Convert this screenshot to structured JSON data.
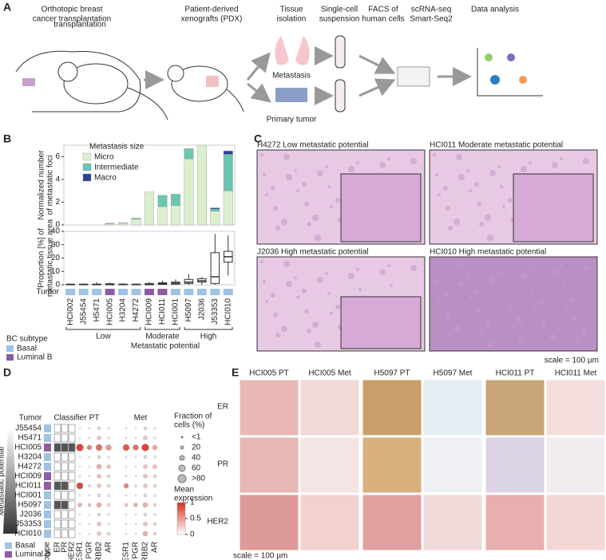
{
  "panel_labels": [
    "A",
    "B",
    "C",
    "D",
    "E"
  ],
  "a": {
    "steps": [
      [
        "Orthotopic breast",
        "cancer transplantation"
      ],
      [
        "Patient-derived",
        "xenografts (PDX)"
      ],
      [
        "Tissue",
        "isolation"
      ],
      [
        "Single-cell",
        "suspension"
      ],
      [
        "FACS of",
        "human cells"
      ],
      [
        "scRNA-seq",
        "Smart-Seq2"
      ],
      [
        "Data analysis"
      ]
    ],
    "overlap_text": "transplantation",
    "sites": [
      "Metastasis",
      "Primary tumor"
    ]
  },
  "subtypes": {
    "names": [
      "Basal",
      "Luminal B"
    ],
    "colors": [
      "#9dc3e6",
      "#8e5ba6"
    ]
  },
  "b": {
    "tumor_label": "Tumor",
    "subtype_title": "BC subtype",
    "subtype_index": [
      0,
      0,
      0,
      1,
      0,
      0,
      1,
      1,
      0,
      0,
      0,
      0,
      0
    ],
    "groups": [
      "Low",
      "Moderate",
      "High"
    ],
    "group_title": "Metastatic potential"
  },
  "chart_data": [
    {
      "type": "bar",
      "stacked": true,
      "ylabel": [
        "Normalized number",
        "of metastatic foci"
      ],
      "legend_title": "Metastasis size",
      "ylim": [
        0,
        7
      ],
      "yticks": [
        0,
        2,
        4,
        6
      ],
      "series": [
        {
          "name": "Micro",
          "color": "#dcefcc",
          "values": [
            0,
            0,
            0,
            0.1,
            0.15,
            0.5,
            2.9,
            1.6,
            1.7,
            5.8,
            7.0,
            1.2,
            3.0
          ]
        },
        {
          "name": "Intermediate",
          "color": "#6cc5b0",
          "values": [
            0,
            0,
            0,
            0.05,
            0.05,
            0.1,
            0,
            1.0,
            1.0,
            0.9,
            0,
            0.2,
            3.2
          ]
        },
        {
          "name": "Macro",
          "color": "#2e3e97",
          "values": [
            0,
            0,
            0,
            0,
            0,
            0,
            0,
            0,
            0,
            0,
            0,
            0.1,
            0.3
          ]
        }
      ]
    },
    {
      "type": "box",
      "ylabel": [
        "Proportion [%] of",
        "metastatic tissue area"
      ],
      "ylim": [
        0,
        40
      ],
      "yticks": [
        0,
        10,
        20,
        30,
        40
      ],
      "categories": [
        "HCI002",
        "J55454",
        "H5471",
        "HCI005",
        "H3204",
        "H4272",
        "HCI009",
        "HCI011",
        "HCI001",
        "H5097",
        "J2036",
        "J53353",
        "HCI010"
      ],
      "whisker_low": [
        0,
        0,
        0,
        0,
        0,
        0,
        0,
        0,
        0,
        0,
        0,
        0,
        7
      ],
      "q1": [
        0,
        0,
        0,
        0,
        0,
        0,
        0,
        0.3,
        0.5,
        1,
        2,
        1,
        17
      ],
      "median": [
        0.2,
        0.2,
        0.2,
        0.3,
        0.2,
        0.2,
        0.3,
        0.8,
        1.2,
        2,
        3,
        6,
        21
      ],
      "q3": [
        0.5,
        0.5,
        0.5,
        0.8,
        0.5,
        0.5,
        1,
        1.5,
        2,
        4,
        4.5,
        24,
        25
      ],
      "whisker_high": [
        1,
        1,
        2,
        1.5,
        1,
        1,
        2,
        3,
        4,
        8,
        6,
        38,
        37
      ]
    }
  ],
  "c": {
    "images": [
      "H4272 Low metastatic potential",
      "HCI011 Moderate metastatic potential",
      "J2036 High metastatic potential",
      "HCI010 High metastatic potential"
    ],
    "scale": "scale = 100 µm"
  },
  "d": {
    "axis_title": "Metastatic potential",
    "headers": [
      "Tumor",
      "Classifier",
      "PT",
      "Met"
    ],
    "subtype_label": "Subtype",
    "classifier_names": [
      "ER",
      "PR",
      "HER2"
    ],
    "genes": [
      "ESR1",
      "PGR",
      "ERBB2",
      "AR"
    ],
    "tumors": [
      "J55454",
      "H5471",
      "HCI005",
      "H3204",
      "H4272",
      "HCI009",
      "HCI011",
      "HCI001",
      "H5097",
      "J2036",
      "J53353",
      "HCI010"
    ],
    "subtype_index": [
      0,
      0,
      1,
      0,
      0,
      1,
      1,
      0,
      0,
      0,
      0,
      0
    ],
    "classifier": [
      [
        0,
        0,
        0
      ],
      [
        0,
        0,
        0
      ],
      [
        1,
        1,
        1
      ],
      [
        0,
        0,
        0
      ],
      [
        0,
        0,
        0
      ],
      [
        0,
        0,
        0
      ],
      [
        1,
        1,
        0
      ],
      [
        0,
        0,
        0
      ],
      [
        1,
        1,
        0
      ],
      [
        0,
        0,
        0
      ],
      [
        0,
        0,
        0
      ],
      [
        0,
        0,
        0
      ]
    ],
    "pt_frac": [
      [
        1,
        1,
        20,
        5
      ],
      [
        1,
        1,
        30,
        10
      ],
      [
        70,
        40,
        60,
        50
      ],
      [
        1,
        1,
        20,
        5
      ],
      [
        1,
        1,
        40,
        30
      ],
      [
        5,
        1,
        30,
        20
      ],
      [
        60,
        10,
        30,
        20
      ],
      [
        1,
        1,
        20,
        10
      ],
      [
        30,
        20,
        40,
        20
      ],
      [
        1,
        1,
        20,
        5
      ],
      [
        1,
        1,
        30,
        10
      ],
      [
        1,
        1,
        30,
        20
      ]
    ],
    "pt_expr": [
      [
        0,
        0,
        0.2,
        0.1
      ],
      [
        0,
        0,
        0.3,
        0.1
      ],
      [
        0.9,
        0.6,
        0.7,
        0.5
      ],
      [
        0,
        0,
        0.2,
        0.1
      ],
      [
        0,
        0,
        0.4,
        0.3
      ],
      [
        0.1,
        0,
        0.3,
        0.2
      ],
      [
        0.9,
        0.2,
        0.3,
        0.2
      ],
      [
        0,
        0,
        0.2,
        0.1
      ],
      [
        0.4,
        0.3,
        0.4,
        0.2
      ],
      [
        0,
        0,
        0.2,
        0.1
      ],
      [
        0,
        0,
        0.3,
        0.1
      ],
      [
        0,
        0,
        0.3,
        0.2
      ]
    ],
    "met_frac": [
      [
        1,
        1,
        20,
        10
      ],
      [
        1,
        1,
        30,
        10
      ],
      [
        60,
        50,
        70,
        40
      ],
      [
        1,
        1,
        20,
        10
      ],
      [
        1,
        1,
        30,
        30
      ],
      [
        5,
        1,
        30,
        20
      ],
      [
        40,
        10,
        30,
        20
      ],
      [
        1,
        1,
        20,
        10
      ],
      [
        20,
        30,
        40,
        20
      ],
      [
        1,
        1,
        20,
        10
      ],
      [
        1,
        1,
        30,
        20
      ],
      [
        1,
        1,
        40,
        20
      ]
    ],
    "met_expr": [
      [
        0,
        0,
        0.2,
        0.1
      ],
      [
        0,
        0,
        0.3,
        0.1
      ],
      [
        0.8,
        0.7,
        0.9,
        0.4
      ],
      [
        0,
        0,
        0.2,
        0.1
      ],
      [
        0,
        0,
        0.3,
        0.3
      ],
      [
        0.1,
        0,
        0.3,
        0.2
      ],
      [
        0.6,
        0.2,
        0.3,
        0.2
      ],
      [
        0,
        0,
        0.2,
        0.1
      ],
      [
        0.3,
        0.4,
        0.4,
        0.2
      ],
      [
        0,
        0,
        0.2,
        0.1
      ],
      [
        0,
        0,
        0.3,
        0.2
      ],
      [
        0,
        0,
        0.4,
        0.2
      ]
    ],
    "size_title": [
      "Fraction of",
      "cells (%)"
    ],
    "size_ticks": [
      {
        "value": 1,
        "label": "<1"
      },
      20,
      40,
      60,
      {
        "value": 80,
        "label": ">80"
      }
    ],
    "color_title": [
      "Mean",
      "expression"
    ],
    "color_range": [
      0,
      1
    ],
    "color_ticks": [
      0,
      0.5,
      1
    ]
  },
  "e": {
    "columns": [
      "HCI005 PT",
      "HCI005 Met",
      "H5097 PT",
      "H5097 Met",
      "HCI011 PT",
      "HCI011 Met"
    ],
    "rows": [
      "ER",
      "PR",
      "HER2"
    ],
    "scale": "scale = 100 µm"
  }
}
